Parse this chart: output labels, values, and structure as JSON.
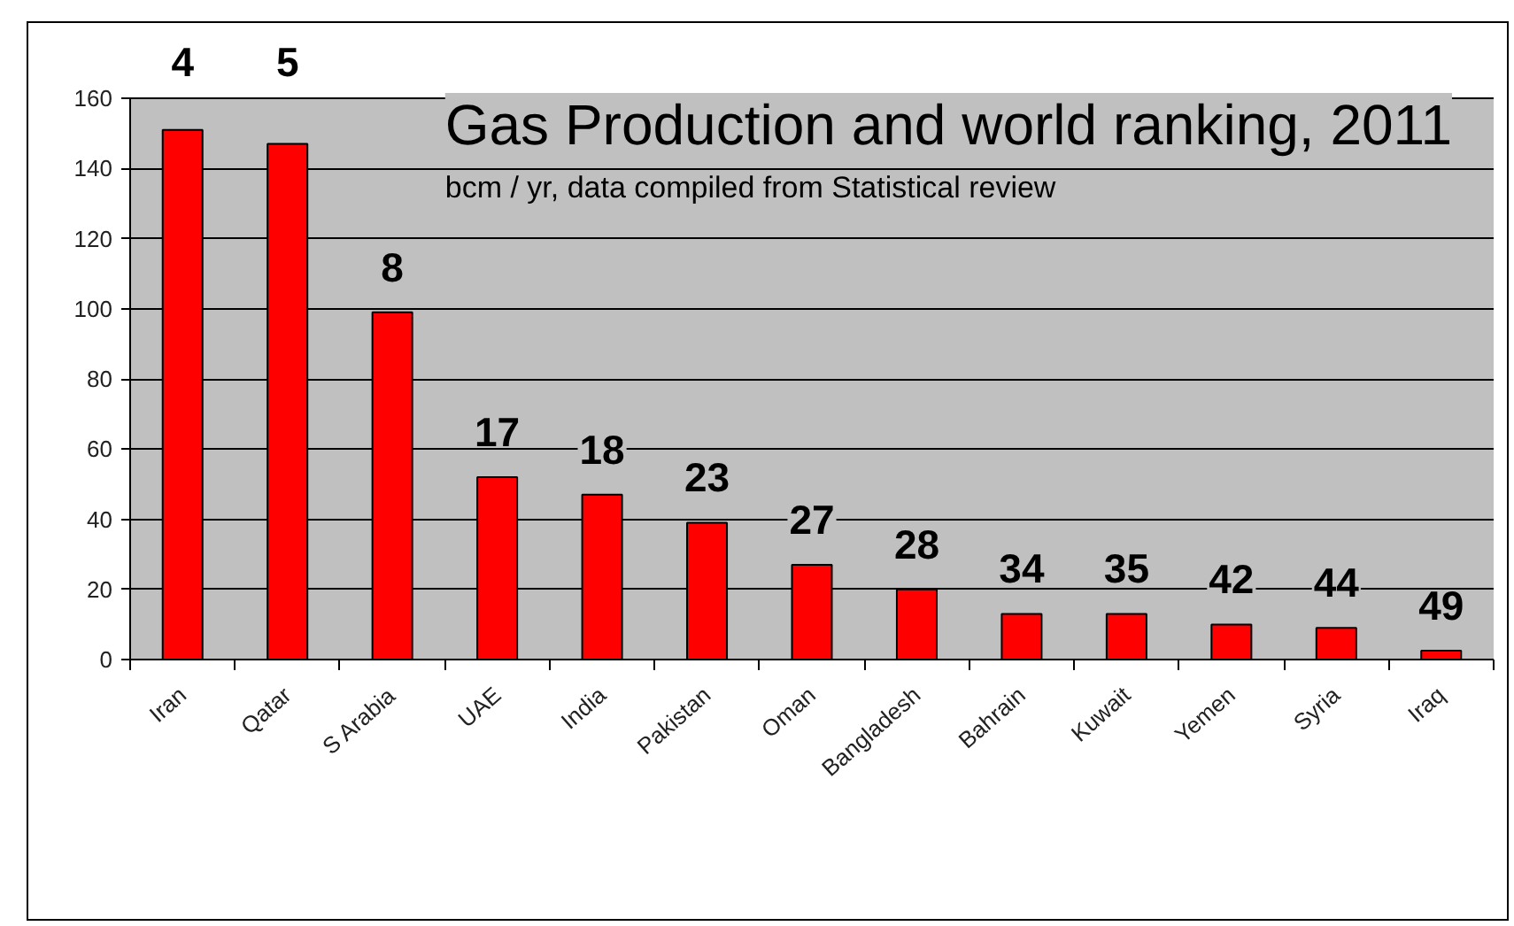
{
  "chart_data": {
    "type": "bar",
    "title": "Gas Production and world ranking, 2011",
    "subtitle": "bcm / yr, data compiled from Statistical review",
    "categories": [
      "Iran",
      "Qatar",
      "S Arabia",
      "UAE",
      "India",
      "Pakistan",
      "Oman",
      "Bangladesh",
      "Bahrain",
      "Kuwait",
      "Yemen",
      "Syria",
      "Iraq"
    ],
    "values": [
      151,
      147,
      99,
      52,
      47,
      39,
      27,
      20,
      13,
      13,
      10,
      9,
      2.5
    ],
    "annotations": [
      {
        "text": "4",
        "x": "Iran",
        "y": 151
      },
      {
        "text": "5",
        "x": "Qatar",
        "y": 147
      },
      {
        "text": "8",
        "x": "S Arabia",
        "y": 99
      },
      {
        "text": "17",
        "x": "UAE",
        "y": 52
      },
      {
        "text": "18",
        "x": "India",
        "y": 47
      },
      {
        "text": "23",
        "x": "Pakistan",
        "y": 39
      },
      {
        "text": "27",
        "x": "Oman",
        "y": 27
      },
      {
        "text": "28",
        "x": "Bangladesh",
        "y": 20
      },
      {
        "text": "34",
        "x": "Bahrain",
        "y": 13
      },
      {
        "text": "35",
        "x": "Kuwait",
        "y": 13
      },
      {
        "text": "42",
        "x": "Yemen",
        "y": 10
      },
      {
        "text": "44",
        "x": "Syria",
        "y": 9
      },
      {
        "text": "49",
        "x": "Iraq",
        "y": 2.5
      }
    ],
    "color": "#ff0000",
    "ylim": [
      0,
      160
    ],
    "yticks": [
      0,
      20,
      40,
      60,
      80,
      100,
      120,
      140,
      160
    ],
    "grid": "y"
  }
}
